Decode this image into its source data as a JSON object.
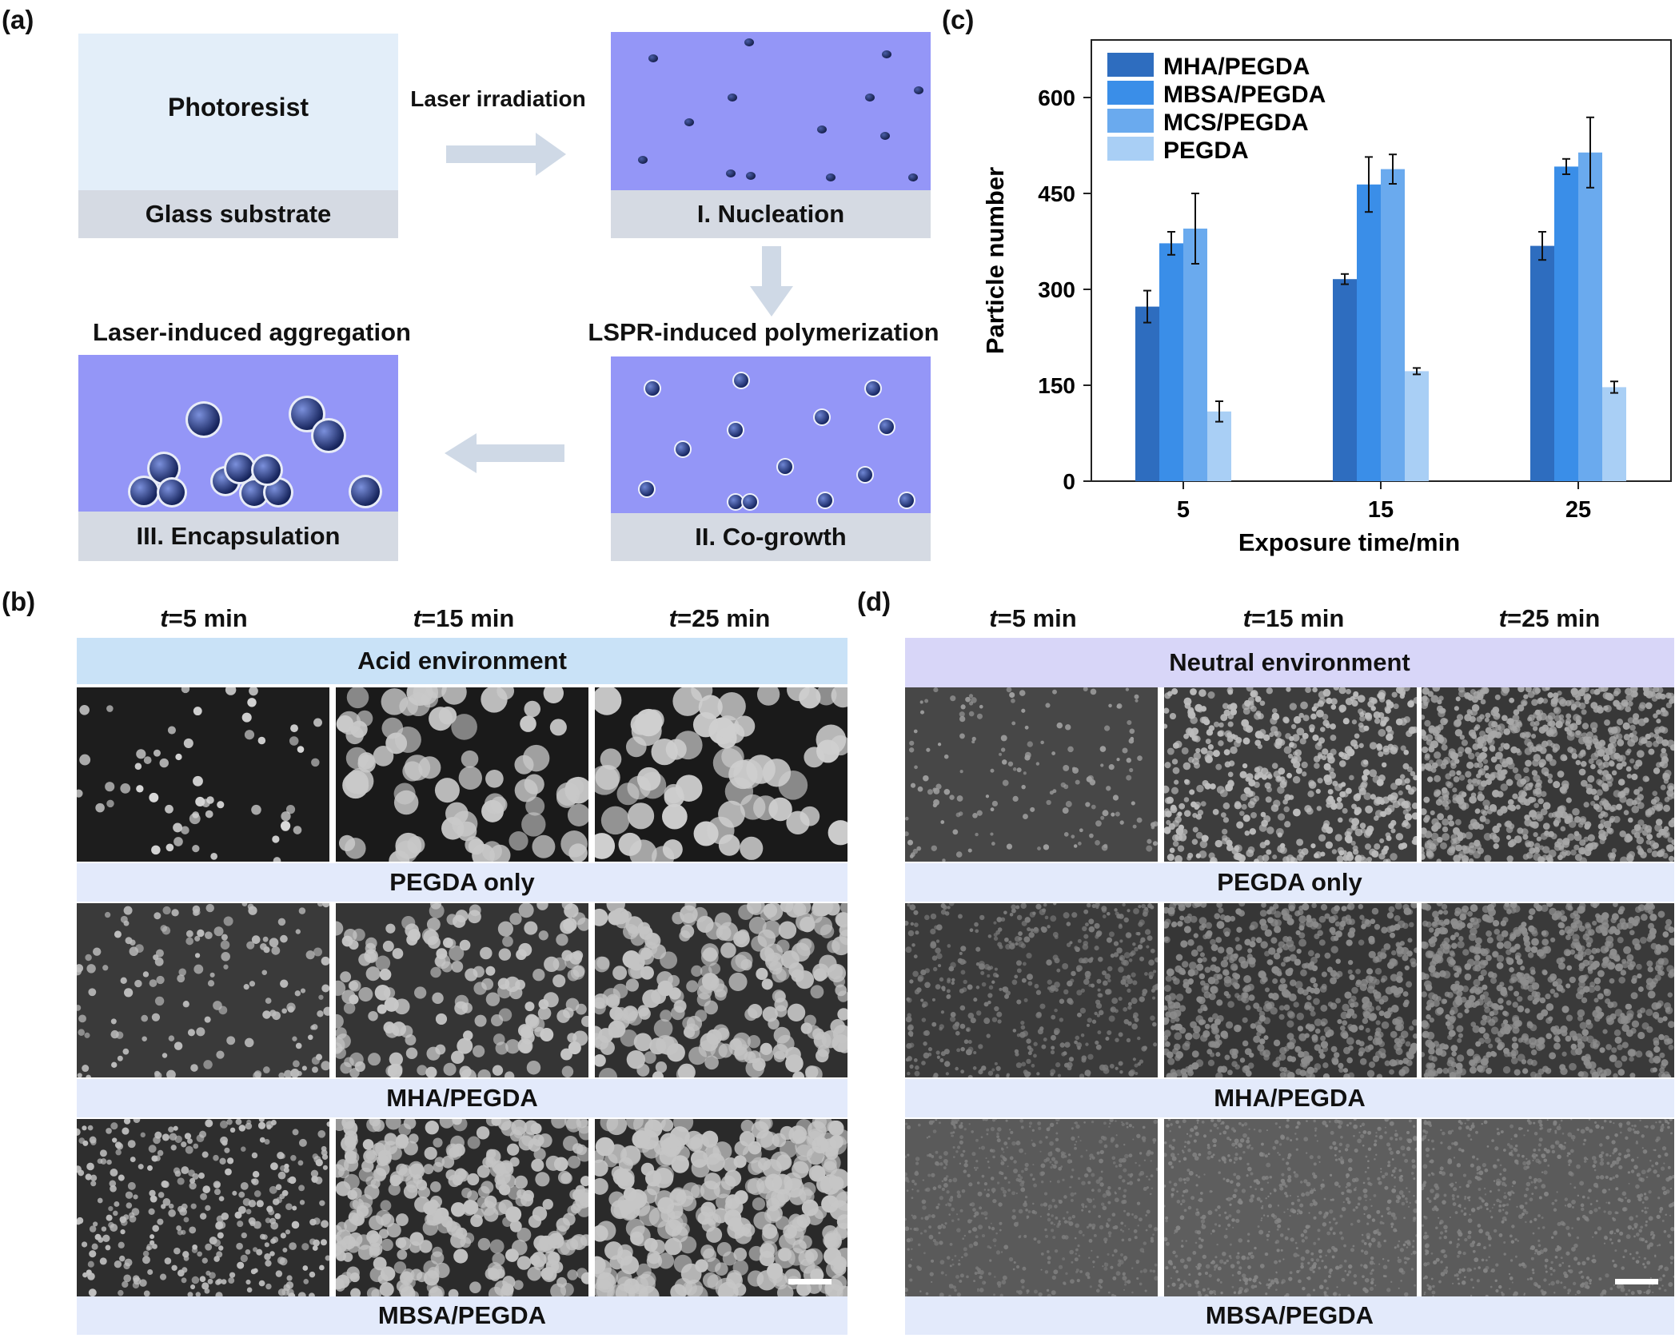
{
  "panel_labels": {
    "a": "(a)",
    "b": "(b)",
    "c": "(c)",
    "d": "(d)"
  },
  "schematic": {
    "photoresist": "Photoresist",
    "glass_substrate": "Glass substrate",
    "laser_irradiation": "Laser irradiation",
    "nucleation": "I. Nucleation",
    "lspr": "LSPR-induced polymerization",
    "cogrowth": "II. Co-growth",
    "laser_aggregation": "Laser-induced aggregation",
    "encapsulation": "III. Encapsulation"
  },
  "sem_b": {
    "times": [
      "t=5 min",
      "t=15 min",
      "t=25 min"
    ],
    "environment": "Acid environment",
    "rows": [
      "PEGDA only",
      "MHA/PEGDA",
      "MBSA/PEGDA"
    ]
  },
  "sem_d": {
    "times": [
      "t=5 min",
      "t=15 min",
      "t=25 min"
    ],
    "environment": "Neutral environment",
    "rows": [
      "PEGDA only",
      "MHA/PEGDA",
      "MBSA/PEGDA"
    ]
  },
  "chart_data": {
    "type": "bar",
    "categories": [
      "5",
      "15",
      "25"
    ],
    "xlabel": "Exposure time/min",
    "ylabel": "Particle number",
    "ylim": [
      0,
      690
    ],
    "yticks": [
      0,
      150,
      300,
      450,
      600
    ],
    "legend_position": "top-left",
    "series": [
      {
        "name": "MHA/PEGDA",
        "color": "#2e6dbf",
        "values": [
          273,
          316,
          368
        ],
        "errors": [
          25,
          8,
          22
        ]
      },
      {
        "name": "MBSA/PEGDA",
        "color": "#3a8ee8",
        "values": [
          372,
          464,
          492
        ],
        "errors": [
          18,
          43,
          12
        ]
      },
      {
        "name": "MCS/PEGDA",
        "color": "#6aaaee",
        "values": [
          395,
          488,
          514
        ],
        "errors": [
          55,
          23,
          55
        ]
      },
      {
        "name": "PEGDA",
        "color": "#a9cff5",
        "values": [
          109,
          172,
          147
        ],
        "errors": [
          16,
          5,
          9
        ]
      }
    ]
  }
}
